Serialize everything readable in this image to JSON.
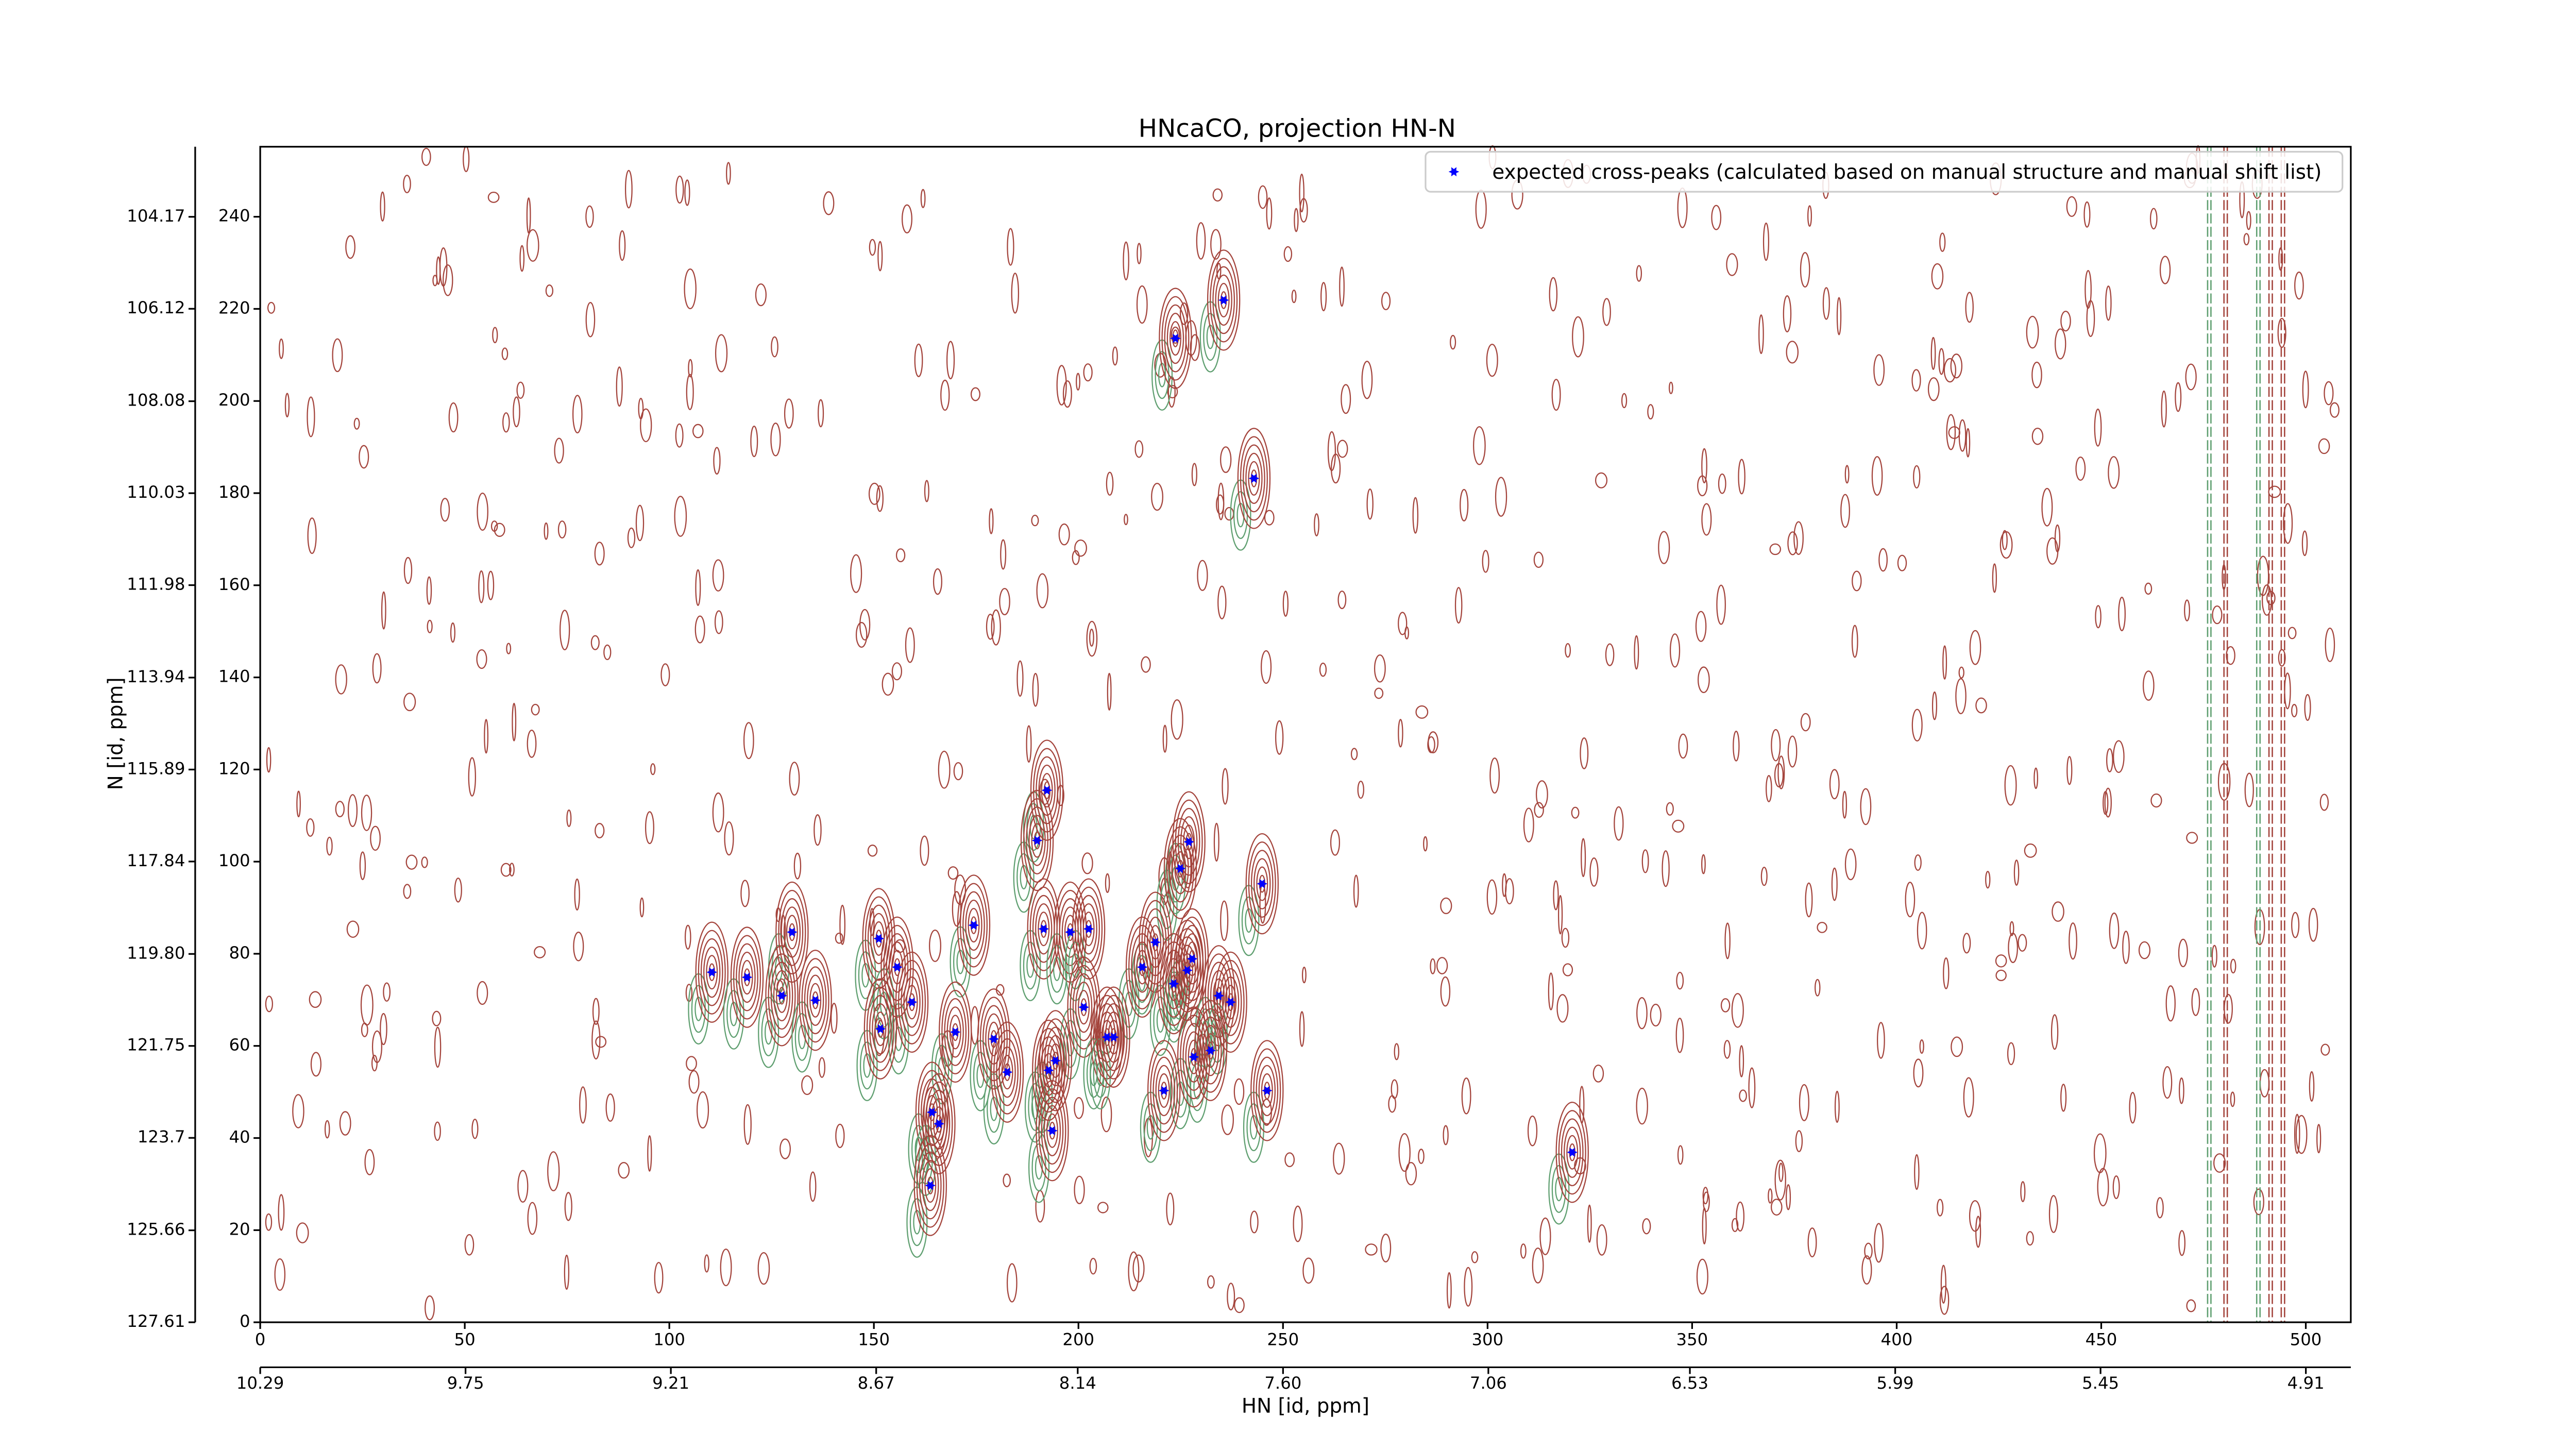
{
  "chart_data": {
    "type": "scatter",
    "title": "HNcaCO, projection HN-N",
    "xlabel": "HN [id, ppm]",
    "ylabel": "N [id, ppm]",
    "xlim": [
      0,
      511
    ],
    "ylim": [
      0,
      255.2
    ],
    "xticks": [
      0,
      50,
      100,
      150,
      200,
      250,
      300,
      350,
      400,
      450,
      500
    ],
    "yticks": [
      0,
      20,
      40,
      60,
      80,
      100,
      120,
      140,
      160,
      180,
      200,
      220,
      240
    ],
    "x2lim": [
      10.29,
      4.7918
    ],
    "x2ticks": [
      10.29,
      9.75,
      9.21,
      8.67,
      8.14,
      {
        "value": 7.6,
        "label": "7.60"
      },
      7.06,
      6.53,
      5.99,
      5.45,
      4.91
    ],
    "y2lim": [
      127.61,
      102.684
    ],
    "y2ticks": [
      104.17,
      106.12,
      108.08,
      110.03,
      111.98,
      113.94,
      115.89,
      117.84,
      {
        "value": 119.8,
        "label": "119.80"
      },
      121.75,
      123.7,
      125.66,
      127.61
    ],
    "legend": "upper right",
    "series": [
      {
        "name": "expected cross-peaks (calculated based on manual structure and manual shift list)",
        "color": "#0000ff",
        "x": [
          223.7,
          235.5,
          242.9,
          192.3,
          189.9,
          227.0,
          224.9,
          244.9,
          174.4,
          191.5,
          198.0,
          202.5,
          151.2,
          130.0,
          218.8,
          227.8,
          215.6,
          155.7,
          110.4,
          119.0,
          226.6,
          223.3,
          127.5,
          135.7,
          234.3,
          237.2,
          159.3,
          201.3,
          151.6,
          169.9,
          179.3,
          207.0,
          208.6,
          232.3,
          228.2,
          194.4,
          192.7,
          182.6,
          220.9,
          246.1,
          164.2,
          165.9,
          193.6,
          320.7,
          163.8
        ],
        "y": [
          213.6,
          221.9,
          183.2,
          115.5,
          104.6,
          104.3,
          98.5,
          95.2,
          86.2,
          85.4,
          84.7,
          85.4,
          83.3,
          84.7,
          82.5,
          78.9,
          77.1,
          77.1,
          76.0,
          74.9,
          76.4,
          73.5,
          70.9,
          69.9,
          70.9,
          69.5,
          69.5,
          68.4,
          63.7,
          63.0,
          61.5,
          61.9,
          61.9,
          59.0,
          57.6,
          56.8,
          54.7,
          54.3,
          50.3,
          50.3,
          45.6,
          43.1,
          41.6,
          36.9,
          29.7
        ]
      }
    ]
  }
}
